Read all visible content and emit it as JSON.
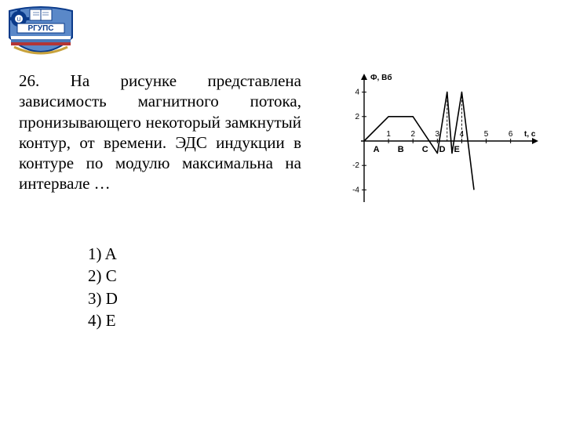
{
  "logo": {
    "label": "РГУПС",
    "colors": {
      "blue": "#0a3a8a",
      "red": "#b33636",
      "gold": "#c8a23c",
      "white": "#ffffff"
    }
  },
  "question": {
    "number": "26.",
    "text": "На рисунке представлена зависимость магнитного потока, пронизывающего некоторый замкнутый контур, от времени. ЭДС индукции в контуре по модулю максимальна на интервале …"
  },
  "options": [
    "1) A",
    "2) C",
    "3) D",
    "4) E"
  ],
  "chart": {
    "type": "line",
    "y_axis_label": "Ф, Вб",
    "x_axis_label": "t, с",
    "xlim": [
      0,
      6.3
    ],
    "ylim": [
      -5,
      5
    ],
    "ytick_labels": [
      -4,
      -2,
      2,
      4
    ],
    "xtick_labels": [
      1,
      2,
      3,
      4,
      5,
      6
    ],
    "interval_labels": [
      {
        "letter": "A",
        "x": 0.5
      },
      {
        "letter": "B",
        "x": 1.5
      },
      {
        "letter": "C",
        "x": 2.5
      },
      {
        "letter": "D",
        "x": 3.2
      },
      {
        "letter": "E",
        "x": 3.8
      }
    ],
    "line_points": [
      [
        0,
        0
      ],
      [
        1,
        2
      ],
      [
        2,
        2
      ],
      [
        3,
        -1
      ],
      [
        3.4,
        4
      ],
      [
        3.6,
        -1
      ],
      [
        4,
        4
      ],
      [
        4.5,
        -4
      ]
    ],
    "line_color": "#000000",
    "axis_color": "#000000",
    "label_fontsize": 10,
    "line_width": 1.6,
    "dashed_x": [
      3.4,
      4.0
    ],
    "background_color": "#ffffff"
  }
}
